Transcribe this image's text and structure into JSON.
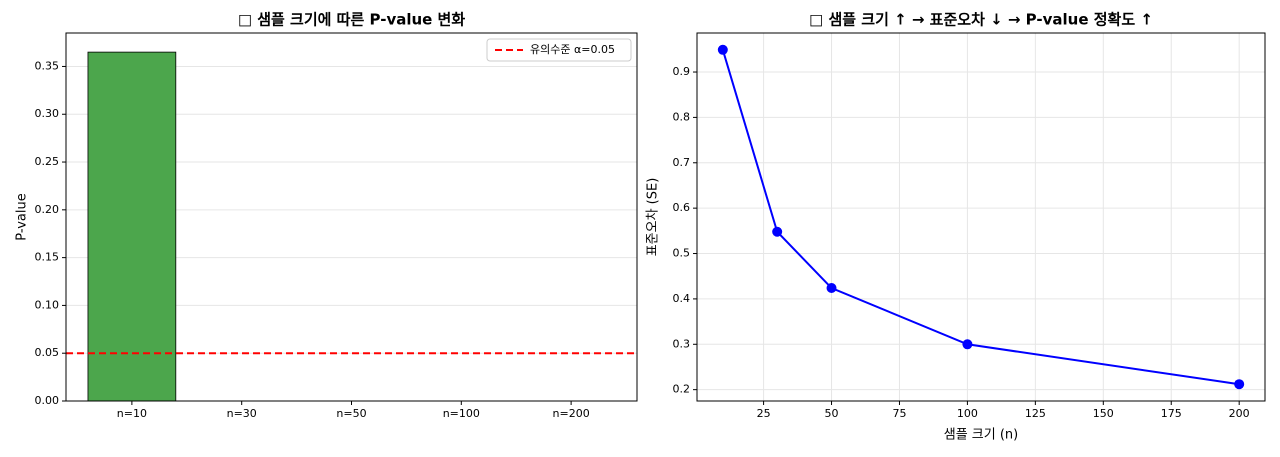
{
  "chart_data": [
    {
      "type": "bar",
      "title": "□ 샘플 크기에 따른 P-value 변화",
      "y_label": "P-value",
      "categories": [
        "n=10",
        "n=30",
        "n=50",
        "n=100",
        "n=200"
      ],
      "values": [
        0.365,
        0,
        0,
        0,
        0
      ],
      "color": "#4ca64c",
      "ylim": [
        0,
        0.385
      ],
      "yticks": [
        {
          "value": 0,
          "label": "0.00"
        },
        {
          "value": 0.05,
          "label": "0.05"
        },
        {
          "value": 0.1,
          "label": "0.10"
        },
        {
          "value": 0.15,
          "label": "0.15"
        },
        {
          "value": 0.2,
          "label": "0.20"
        },
        {
          "value": 0.25,
          "label": "0.25"
        },
        {
          "value": 0.3,
          "label": "0.30"
        },
        {
          "value": 0.35,
          "label": "0.35"
        }
      ],
      "hlines": [
        {
          "y": 0.05,
          "label": "유의수준 α=0.05",
          "color": "red"
        }
      ],
      "legend": "upper-right",
      "grid": "y"
    },
    {
      "type": "line",
      "title": "□ 샘플 크기 ↑ → 표준오차 ↓ → P-value 정확도 ↑",
      "x_label": "샘플 크기 (n)",
      "y_label": "표준오차 (SE)",
      "x": [
        10,
        30,
        50,
        100,
        200
      ],
      "values": [
        0.949,
        0.548,
        0.424,
        0.3,
        0.212
      ],
      "color": "blue",
      "xlim": [
        0.5,
        209.5
      ],
      "xticks": [
        25,
        50,
        75,
        100,
        125,
        150,
        175,
        200
      ],
      "ylim": [
        0.175,
        0.986
      ],
      "yticks": [
        0.2,
        0.3,
        0.4,
        0.5,
        0.6,
        0.7,
        0.8,
        0.9
      ],
      "grid": "both"
    }
  ]
}
